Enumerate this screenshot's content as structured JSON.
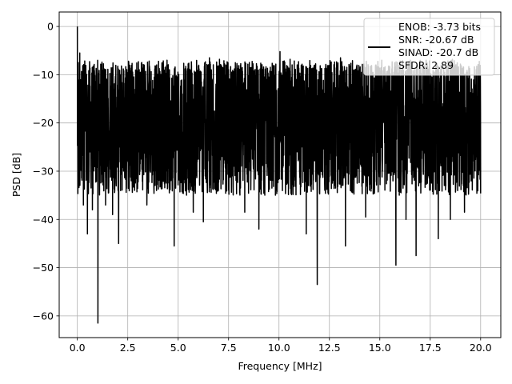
{
  "chart_data": {
    "type": "line",
    "title": "",
    "xlabel": "Frequency [MHz]",
    "ylabel": "PSD [dB]",
    "xlim": [
      -0.9,
      21.0
    ],
    "ylim": [
      -64.5,
      3.0
    ],
    "x_ticks": [
      0.0,
      2.5,
      5.0,
      7.5,
      10.0,
      12.5,
      15.0,
      17.5,
      20.0
    ],
    "x_tick_labels": [
      "0.0",
      "2.5",
      "5.0",
      "7.5",
      "10.0",
      "12.5",
      "15.0",
      "17.5",
      "20.0"
    ],
    "y_ticks": [
      0,
      -10,
      -20,
      -30,
      -40,
      -50,
      -60
    ],
    "y_tick_labels": [
      "0",
      "−10",
      "−20",
      "−30",
      "−40",
      "−50",
      "−60"
    ],
    "grid": true,
    "legend_position": "top-right",
    "legend_lines": [
      "ENOB: -3.73 bits",
      "SNR: -20.67 dB",
      "SINAD: -20.7 dB",
      "SFDR: 2.89"
    ],
    "series": [
      {
        "color": "#000000",
        "x_range": [
          0.0,
          20.0
        ],
        "noise_band": {
          "min": -32,
          "max": -8,
          "mean": -20
        },
        "peaks": [
          {
            "x": 0.0,
            "y": 0.0
          },
          {
            "x": 0.05,
            "y": -7.5
          },
          {
            "x": 0.12,
            "y": -5.5
          },
          {
            "x": 4.45,
            "y": -7.0
          },
          {
            "x": 6.55,
            "y": -6.5
          },
          {
            "x": 7.05,
            "y": -6.8
          },
          {
            "x": 10.05,
            "y": -5.2
          },
          {
            "x": 10.55,
            "y": -6.8
          },
          {
            "x": 13.05,
            "y": -6.5
          },
          {
            "x": 15.1,
            "y": -7.0
          },
          {
            "x": 17.3,
            "y": -7.0
          },
          {
            "x": 18.6,
            "y": -6.8
          }
        ],
        "dips": [
          {
            "x": 0.3,
            "y": -37.0
          },
          {
            "x": 0.5,
            "y": -43.0
          },
          {
            "x": 0.75,
            "y": -38.0
          },
          {
            "x": 1.02,
            "y": -61.5
          },
          {
            "x": 1.4,
            "y": -37.0
          },
          {
            "x": 1.75,
            "y": -39.0
          },
          {
            "x": 2.05,
            "y": -45.0
          },
          {
            "x": 3.45,
            "y": -37.0
          },
          {
            "x": 4.8,
            "y": -45.5
          },
          {
            "x": 5.75,
            "y": -38.5
          },
          {
            "x": 6.25,
            "y": -40.5
          },
          {
            "x": 8.3,
            "y": -38.5
          },
          {
            "x": 9.0,
            "y": -42.0
          },
          {
            "x": 11.35,
            "y": -43.0
          },
          {
            "x": 11.9,
            "y": -53.5
          },
          {
            "x": 13.3,
            "y": -45.5
          },
          {
            "x": 14.3,
            "y": -39.5
          },
          {
            "x": 15.8,
            "y": -49.5
          },
          {
            "x": 16.3,
            "y": -40.0
          },
          {
            "x": 16.8,
            "y": -47.5
          },
          {
            "x": 17.9,
            "y": -44.0
          },
          {
            "x": 18.5,
            "y": -40.0
          },
          {
            "x": 19.2,
            "y": -38.5
          }
        ]
      }
    ]
  }
}
